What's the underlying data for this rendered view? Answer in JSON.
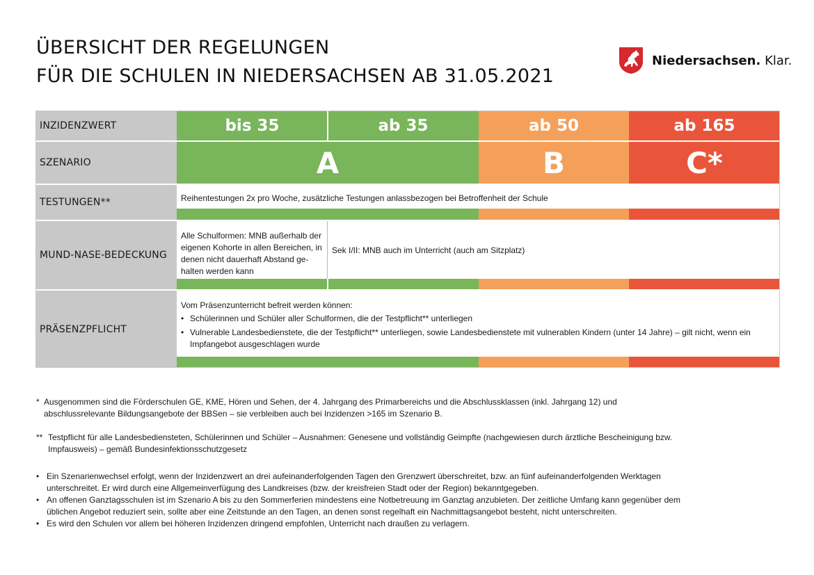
{
  "title": {
    "line1": "ÜBERSICHT DER REGELUNGEN",
    "line2": "FÜR DIE SCHULEN IN NIEDERSACHSEN AB 31.05.2021"
  },
  "logo": {
    "icon": "horse-crest-icon",
    "brand_bold": "Niedersachsen.",
    "brand_light": " Klar."
  },
  "colors": {
    "green": "#79b55a",
    "orange": "#f4a05a",
    "red": "#e9553b",
    "label_grey": "#c8c8c8"
  },
  "table": {
    "labels": {
      "inzidenz": "INZIDENZWERT",
      "szenario": "SZENARIO",
      "testungen": "TESTUNGEN**",
      "mnb": "MUND-NASE-BEDECKUNG",
      "praesenz": "PRÄSENZPFLICHT"
    },
    "inzidenz": [
      "bis 35",
      "ab 35",
      "ab 50",
      "ab 165"
    ],
    "szenario": [
      "A",
      "B",
      "C*"
    ],
    "testungen_text": "Reihentestungen 2x pro Woche, zusätzliche Testungen anlassbezogen bei Betroffenheit der Schule",
    "mnb_left": "Alle Schulformen: MNB außerhalb der eigenen Kohorte in allen Bereichen, in denen nicht dauerhaft Abstand ge-halten werden kann",
    "mnb_right": "Sek I/II: MNB auch im Unterricht (auch am Sitzplatz)",
    "praesenz_intro": "Vom Präsenzunterricht befreit werden können:",
    "praesenz_items": [
      "Schülerinnen und Schüler aller Schulformen, die der Testpflicht** unterliegen",
      "Vulnerable Landesbedienstete, die der Testpflicht** unterliegen, sowie Landesbedienstete mit vulnerablen Kindern (unter 14 Jahre) – gilt nicht, wenn ein Impfangebot ausgeschlagen wurde"
    ]
  },
  "notes": {
    "star_mark": "*",
    "star": "Ausgenommen sind die Förderschulen GE, KME, Hören und Sehen, der 4. Jahrgang des Primarbereichs und die Abschlussklassen (inkl. Jahrgang 12) und abschlussrelevante Bildungsangebote der BBSen – sie verbleiben auch bei Inzidenzen >165 im Szenario B.",
    "dstar_mark": "**",
    "dstar": "Testpflicht für alle Landesbediensteten, Schülerinnen und Schüler – Ausnahmen: Genesene und vollständig Geimpfte (nachgewiesen durch ärztliche Bescheinigung bzw. Impfausweis) – gemäß Bundesinfektionsschutzgesetz",
    "bullets": [
      "Ein Szenarienwechsel erfolgt, wenn der Inzidenzwert an drei aufeinanderfolgenden Tagen den Grenzwert überschreitet, bzw. an fünf aufeinanderfolgenden Werktagen unterschreitet. Er wird durch eine Allgemeinverfügung des Landkreises (bzw. der kreisfreien Stadt oder der Region) bekanntgegeben.",
      "An offenen Ganztagsschulen ist im Szenario A bis zu den Sommerferien mindestens eine Notbetreuung im Ganztag anzubieten. Der zeitliche Umfang kann gegenüber dem üblichen Angebot reduziert sein, sollte aber eine Zeitstunde an den Tagen, an denen sonst regelhaft ein Nachmittagsangebot besteht, nicht unterschreiten.",
      "Es wird den Schulen vor allem bei höheren Inzidenzen dringend empfohlen, Unterricht nach draußen zu verlagern."
    ]
  }
}
